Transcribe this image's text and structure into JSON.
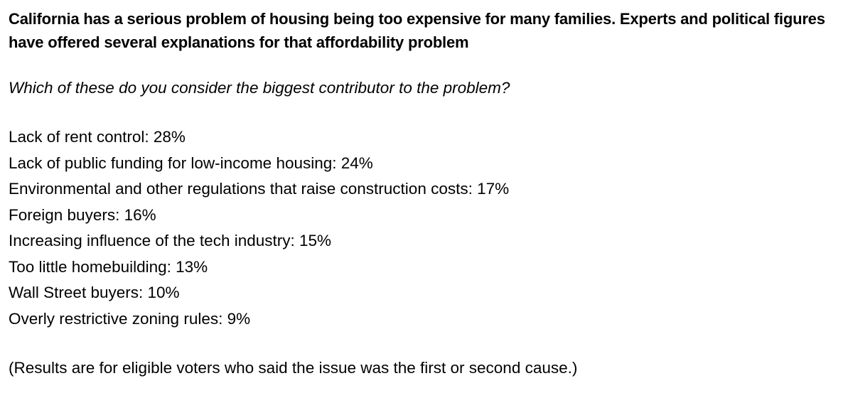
{
  "heading": "California has a serious problem of housing being too expensive for many families. Experts and political figures have offered several explanations for that affordability problem",
  "question": "Which of these do you consider the biggest contributor to the problem?",
  "results": [
    {
      "text": "Lack of rent control: 28%"
    },
    {
      "text": "Lack of public funding for low-income housing: 24%"
    },
    {
      "text": "Environmental and other regulations that raise construction costs: 17%"
    },
    {
      "text": "Foreign buyers: 16%"
    },
    {
      "text": "Increasing influence of the tech industry: 15%"
    },
    {
      "text": "Too little homebuilding: 13%"
    },
    {
      "text": "Wall Street buyers: 10%"
    },
    {
      "text": "Overly restrictive zoning rules: 9%"
    }
  ],
  "footnote": "(Results are for eligible voters who said the issue was the first or second cause.)"
}
